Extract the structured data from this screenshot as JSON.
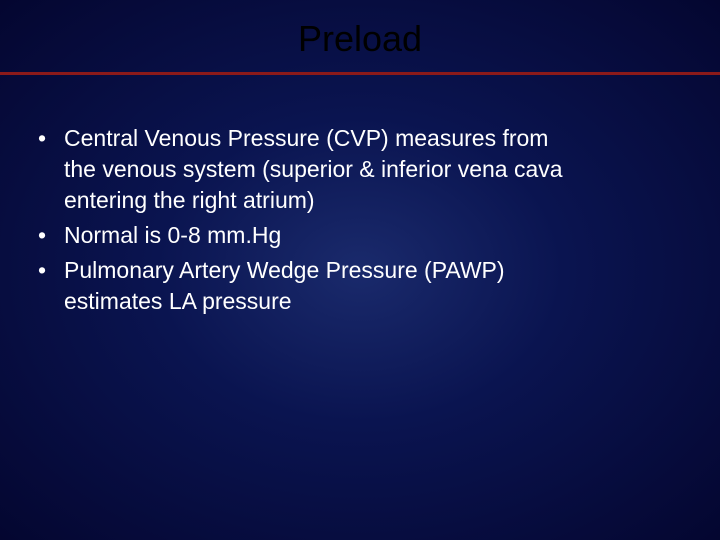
{
  "slide": {
    "title": "Preload",
    "title_color": "#000000",
    "title_fontsize": 36,
    "background_gradient": {
      "center": "#1a2a6c",
      "mid": "#0a1450",
      "edge": "#040630"
    },
    "divider_color": "#8b1a1a",
    "divider_height": 3,
    "text_color": "#ffffff",
    "body_fontsize": 23,
    "bullets": [
      {
        "lines": [
          "Central Venous Pressure (CVP) measures from",
          "the venous system (superior & inferior vena cava",
          " entering the right atrium)"
        ]
      },
      {
        "lines": [
          "Normal is 0-8 mm.Hg"
        ]
      },
      {
        "lines": [
          "Pulmonary Artery Wedge Pressure (PAWP)",
          "estimates LA pressure"
        ]
      }
    ]
  }
}
